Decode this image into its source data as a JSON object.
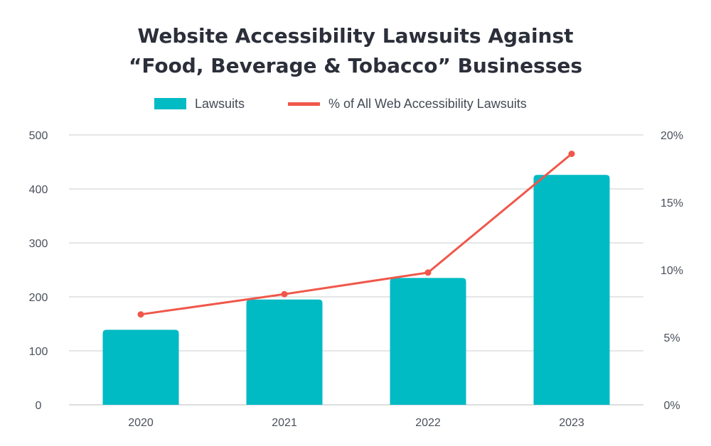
{
  "title_lines": [
    "Website Accessibility Lawsuits Against",
    "“Food, Beverage & Tobacco” Businesses"
  ],
  "legend": [
    {
      "label": "Lawsuits",
      "color": "#00BAC4",
      "kind": "bar"
    },
    {
      "label": "% of All Web Accessibility Lawsuits",
      "color": "#F0574A",
      "kind": "line"
    }
  ],
  "chart_data": {
    "type": "bar",
    "title": "Website Accessibility Lawsuits Against “Food, Beverage & Tobacco” Businesses",
    "categories": [
      "2020",
      "2021",
      "2022",
      "2023"
    ],
    "series": [
      {
        "name": "Lawsuits",
        "type": "bar",
        "axis": "left",
        "color": "#00BAC4",
        "values": [
          139,
          195,
          235,
          426
        ]
      },
      {
        "name": "% of All Web Accessibility Lawsuits",
        "type": "line",
        "axis": "right",
        "color": "#F0574A",
        "values": [
          6.7,
          8.2,
          9.8,
          18.6
        ]
      }
    ],
    "y_left": {
      "min": 0,
      "max": 500,
      "ticks": [
        0,
        100,
        200,
        300,
        400,
        500
      ],
      "tick_labels": [
        "0",
        "100",
        "200",
        "300",
        "400",
        "500"
      ]
    },
    "y_right": {
      "min": 0,
      "max": 20,
      "ticks": [
        0,
        5,
        10,
        15,
        20
      ],
      "tick_labels": [
        "0%",
        "5%",
        "10%",
        "15%",
        "20%"
      ]
    },
    "grid": true,
    "legend_position": "top-center"
  }
}
